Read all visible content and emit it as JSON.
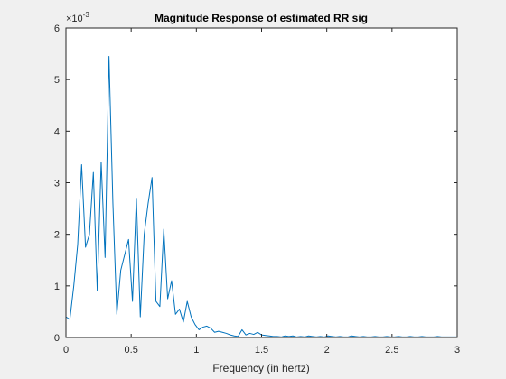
{
  "figure": {
    "background": "#f0f0f0"
  },
  "chart_data": {
    "type": "line",
    "title": "Magnitude Response of estimated RR sig",
    "xlabel": "Frequency (in hertz)",
    "ylabel": "",
    "xlim": [
      0,
      3
    ],
    "ylim": [
      0,
      0.006
    ],
    "x_ticks": [
      0,
      0.5,
      1,
      1.5,
      2,
      2.5,
      3
    ],
    "x_tick_labels": [
      "0",
      "0.5",
      "1",
      "1.5",
      "2",
      "2.5",
      "3"
    ],
    "y_ticks": [
      0,
      1,
      2,
      3,
      4,
      5,
      6
    ],
    "y_tick_labels": [
      "0",
      "1",
      "2",
      "3",
      "4",
      "5",
      "6"
    ],
    "y_exponent_base": "×10",
    "y_exponent_power": "-3",
    "grid": false,
    "series_color": "#0072bd",
    "series": [
      {
        "x": [
          0,
          0.03,
          0.06,
          0.09,
          0.12,
          0.15,
          0.18,
          0.21,
          0.24,
          0.27,
          0.3,
          0.33,
          0.36,
          0.39,
          0.42,
          0.45,
          0.48,
          0.51,
          0.54,
          0.57,
          0.6,
          0.63,
          0.66,
          0.69,
          0.72,
          0.75,
          0.78,
          0.81,
          0.84,
          0.87,
          0.9,
          0.93,
          0.96,
          0.99,
          1.02,
          1.05,
          1.08,
          1.11,
          1.14,
          1.17,
          1.2,
          1.23,
          1.26,
          1.29,
          1.32,
          1.35,
          1.38,
          1.41,
          1.44,
          1.47,
          1.5,
          1.53,
          1.56,
          1.59,
          1.62,
          1.65,
          1.68,
          1.71,
          1.74,
          1.77,
          1.8,
          1.83,
          1.86,
          1.89,
          1.92,
          1.95,
          1.98,
          2.01,
          2.04,
          2.07,
          2.1,
          2.13,
          2.16,
          2.19,
          2.22,
          2.25,
          2.28,
          2.31,
          2.34,
          2.37,
          2.4,
          2.43,
          2.46,
          2.49,
          2.52,
          2.55,
          2.58,
          2.61,
          2.64,
          2.67,
          2.7,
          2.73,
          2.76,
          2.79,
          2.82,
          2.85,
          2.88,
          2.91,
          2.94,
          2.97,
          3.0
        ],
        "y": [
          0.0004,
          0.00035,
          0.001,
          0.0018,
          0.00335,
          0.00175,
          0.002,
          0.0032,
          0.0009,
          0.0034,
          0.00155,
          0.00545,
          0.0026,
          0.00045,
          0.0013,
          0.0016,
          0.0019,
          0.0007,
          0.0027,
          0.0004,
          0.002,
          0.0026,
          0.0031,
          0.0007,
          0.0006,
          0.0021,
          0.00075,
          0.0011,
          0.00045,
          0.00055,
          0.0003,
          0.0007,
          0.0004,
          0.00025,
          0.00015,
          0.0002,
          0.00022,
          0.00018,
          0.0001,
          0.00012,
          0.0001,
          8e-05,
          5e-05,
          3e-05,
          2e-05,
          0.00015,
          5e-05,
          8e-05,
          6e-05,
          0.0001,
          5e-05,
          4e-05,
          3e-05,
          2e-05,
          2e-05,
          1e-05,
          3e-05,
          2e-05,
          3e-05,
          1e-05,
          2e-05,
          1e-05,
          3e-05,
          2e-05,
          1e-05,
          2e-05,
          1e-05,
          3e-05,
          2e-05,
          1e-05,
          2e-05,
          1e-05,
          1e-05,
          3e-05,
          2e-05,
          1e-05,
          2e-05,
          1e-05,
          1e-05,
          2e-05,
          1e-05,
          1e-05,
          2e-05,
          1e-05,
          1e-05,
          2e-05,
          1e-05,
          1e-05,
          2e-05,
          1e-05,
          1e-05,
          2e-05,
          1e-05,
          1e-05,
          1e-05,
          2e-05,
          1e-05,
          1e-05,
          1e-05,
          1e-05,
          1e-05
        ]
      }
    ]
  }
}
